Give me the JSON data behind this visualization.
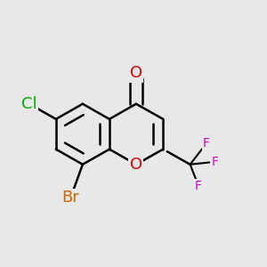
{
  "background_color": "#e8e8e8",
  "bond_color": "#000000",
  "bond_width": 1.8,
  "figsize": [
    3.0,
    3.0
  ],
  "dpi": 100,
  "colors": {
    "O": "#dd0000",
    "Cl": "#00aa00",
    "Br": "#cc6600",
    "F": "#cc00cc",
    "C": "#000000"
  }
}
